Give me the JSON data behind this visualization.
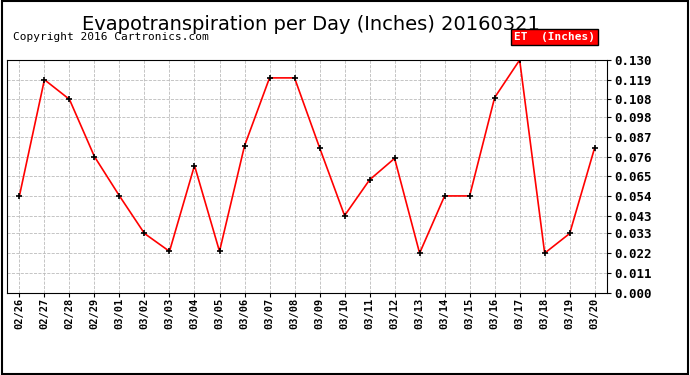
{
  "title": "Evapotranspiration per Day (Inches) 20160321",
  "copyright": "Copyright 2016 Cartronics.com",
  "legend_label": "ET  (Inches)",
  "dates": [
    "02/26",
    "02/27",
    "02/28",
    "02/29",
    "03/01",
    "03/02",
    "03/03",
    "03/04",
    "03/05",
    "03/06",
    "03/07",
    "03/08",
    "03/09",
    "03/10",
    "03/11",
    "03/12",
    "03/13",
    "03/14",
    "03/15",
    "03/16",
    "03/17",
    "03/18",
    "03/19",
    "03/20"
  ],
  "values": [
    0.054,
    0.119,
    0.108,
    0.076,
    0.054,
    0.033,
    0.023,
    0.071,
    0.023,
    0.082,
    0.12,
    0.12,
    0.081,
    0.043,
    0.063,
    0.075,
    0.022,
    0.054,
    0.054,
    0.109,
    0.13,
    0.022,
    0.033,
    0.081
  ],
  "line_color": "red",
  "marker_color": "black",
  "background_color": "#ffffff",
  "grid_color": "#bbbbbb",
  "ylim": [
    0.0,
    0.13
  ],
  "yticks": [
    0.0,
    0.011,
    0.022,
    0.033,
    0.043,
    0.054,
    0.065,
    0.076,
    0.087,
    0.098,
    0.108,
    0.119,
    0.13
  ],
  "title_fontsize": 14,
  "copyright_fontsize": 8,
  "legend_bg": "red",
  "legend_text_color": "white",
  "outer_border_color": "#000000"
}
